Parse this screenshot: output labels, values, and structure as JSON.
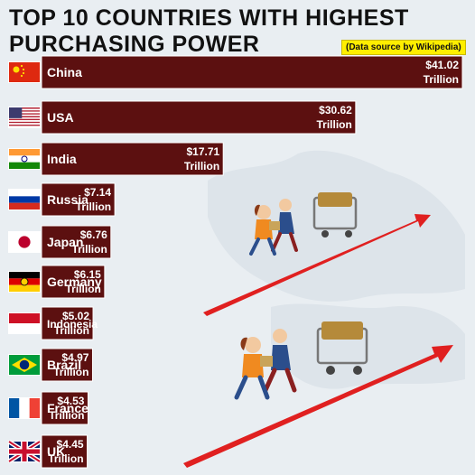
{
  "header": {
    "title_line1": "TOP 10 COUNTRIES WITH HIGHEST",
    "title_line2": "PURCHASING POWER",
    "source": "(Data source by Wikipedia)"
  },
  "chart_data": {
    "type": "bar",
    "orientation": "horizontal",
    "title": "TOP 10 COUNTRIES WITH HIGHEST PURCHASING POWER",
    "categories": [
      "China",
      "USA",
      "India",
      "Russia",
      "Japan",
      "Germany",
      "Indonesia",
      "Brazil",
      "France",
      "UK"
    ],
    "values": [
      41.02,
      30.62,
      17.71,
      7.14,
      6.76,
      6.15,
      5.02,
      4.97,
      4.53,
      4.45
    ],
    "value_labels": [
      [
        "$41.02",
        "Trillion"
      ],
      [
        "$30.62",
        "Trillion"
      ],
      [
        "$17.71",
        "Trillion"
      ],
      [
        "$7.14",
        "Trillion"
      ],
      [
        "$6.76",
        "Trillion"
      ],
      [
        "$6.15",
        "Trillion"
      ],
      [
        "$5.02",
        "Trillion"
      ],
      [
        "$4.97",
        "Trillion"
      ],
      [
        "$4.53",
        "Trillion"
      ],
      [
        "$4.45",
        "Trillion"
      ]
    ],
    "flags": [
      "china-flag",
      "usa-flag",
      "india-flag",
      "russia-flag",
      "japan-flag",
      "germany-flag",
      "indonesia-flag",
      "brazil-flag",
      "france-flag",
      "uk-flag"
    ],
    "bar_color": "#5c1010",
    "legend": "none",
    "grid": false
  },
  "illustration": {
    "arrow_color": "#e02020",
    "elements": [
      "shoppers-with-cart-icon",
      "shoppers-with-cart-icon",
      "red-rising-arrow-icon",
      "red-rising-arrow-icon"
    ]
  }
}
